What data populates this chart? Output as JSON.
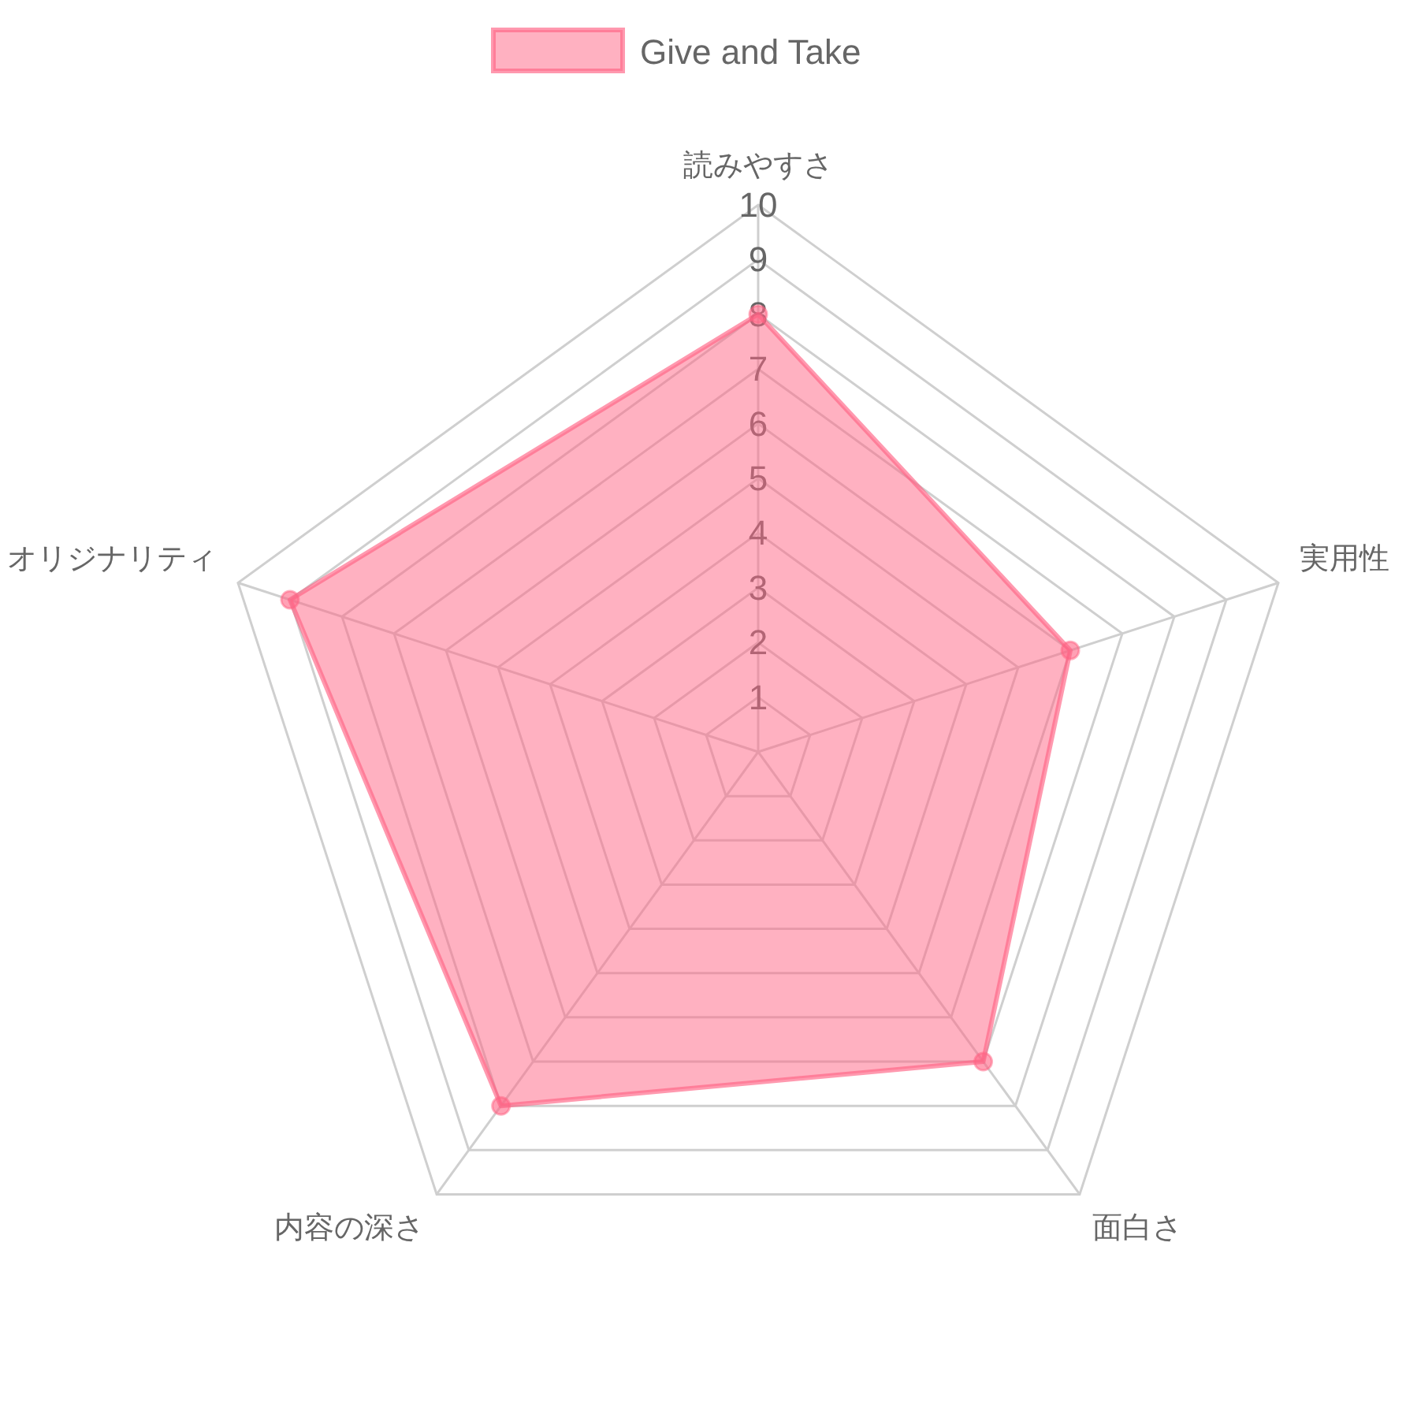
{
  "chart_data": {
    "type": "radar",
    "categories": [
      "読みやすさ",
      "実用性",
      "面白さ",
      "内容の深さ",
      "オリジナリティ"
    ],
    "series": [
      {
        "name": "Give and Take",
        "color": "#ff6384",
        "values": [
          8,
          6,
          7,
          8,
          9
        ]
      }
    ],
    "ylim": [
      0,
      10
    ],
    "yticks": [
      1,
      2,
      3,
      4,
      5,
      6,
      7,
      8,
      9,
      10
    ],
    "grid": true,
    "legend": "top",
    "marker": "circle"
  }
}
